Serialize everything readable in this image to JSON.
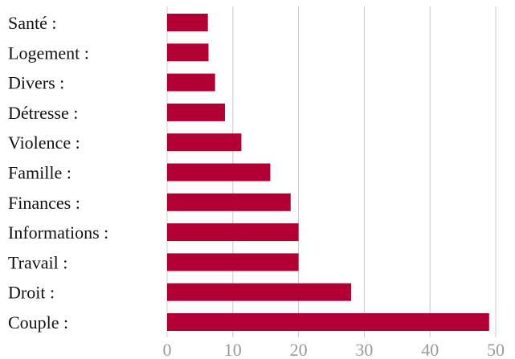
{
  "chart_data": {
    "type": "bar",
    "orientation": "horizontal",
    "title": "",
    "xlabel": "",
    "ylabel": "",
    "categories": [
      "Santé :",
      "Logement :",
      "Divers :",
      "Détresse :",
      "Violence :",
      "Famille :",
      "Finances :",
      "Informations :",
      "Travail :",
      "Droit :",
      "Couple :"
    ],
    "values": [
      6.2,
      6.3,
      7.3,
      8.8,
      11.3,
      15.7,
      18.8,
      20.0,
      20.0,
      28.0,
      49.0
    ],
    "xlim": [
      0,
      50
    ],
    "xticks": [
      "0",
      "10",
      "20",
      "30",
      "40",
      "50"
    ],
    "grid": "vertical",
    "legend": "none",
    "colors": {
      "bar": "#b30034",
      "grid": "#c8c8c8",
      "tick_text": "#9a9a9a",
      "label_text": "#111111"
    }
  }
}
